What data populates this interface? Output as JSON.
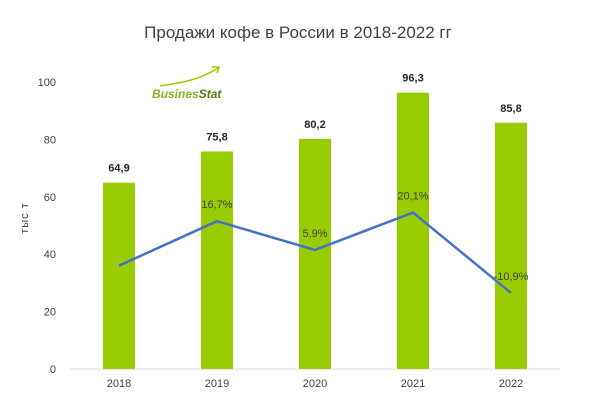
{
  "chart_data": {
    "type": "bar",
    "title": "Продажи кофе в России в 2018-2022 гг",
    "ylabel": "тыс т",
    "xlabel": "",
    "ylim": [
      0,
      100
    ],
    "yticks": [
      "0",
      "20",
      "40",
      "60",
      "80",
      "100"
    ],
    "grid": false,
    "categories": [
      "2018",
      "2019",
      "2020",
      "2021",
      "2022"
    ],
    "series": [
      {
        "values": [
          64.9,
          75.8,
          80.2,
          96.3,
          85.8
        ],
        "labels": [
          "64,9",
          "75,8",
          "80,2",
          "96,3",
          "85,8"
        ],
        "color": "#99cc00"
      },
      {
        "type": "line",
        "growth_pct": [
          null,
          16.7,
          5.9,
          20.1,
          -10.9
        ],
        "labels": [
          "",
          "16,7%",
          "5,9%",
          "20,1%",
          "-10,9%"
        ],
        "line_y_levels": [
          36,
          51.5,
          41.5,
          54.5,
          26.5
        ],
        "color": "#4472c4"
      }
    ]
  },
  "logo": {
    "text": "BusinesStat",
    "colors": [
      "#7fb51f",
      "#4f7f12"
    ]
  }
}
